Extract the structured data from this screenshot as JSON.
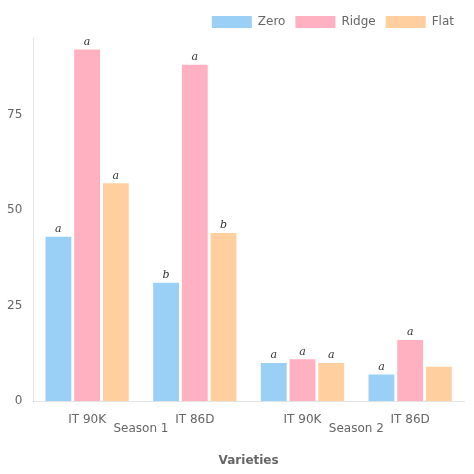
{
  "chart_data": {
    "type": "bar",
    "xlabel": "Varieties",
    "categories": [
      "IT 90K",
      "IT 86D",
      "IT 90K",
      "IT 86D"
    ],
    "series": [
      {
        "name": "Zero",
        "values": [
          43,
          31,
          10,
          7
        ],
        "annotations": [
          "a",
          "b",
          "a",
          "a"
        ]
      },
      {
        "name": "Ridge",
        "values": [
          92,
          88,
          11,
          16
        ],
        "annotations": [
          "a",
          "a",
          "a",
          "a"
        ]
      },
      {
        "name": "Flat",
        "values": [
          57,
          44,
          10,
          9
        ],
        "annotations": [
          "a",
          "b",
          "a",
          null
        ]
      }
    ],
    "annotations": [
      "Season 1",
      "Season 2"
    ],
    "ylim": [
      0,
      95
    ],
    "yticks": [
      0,
      25,
      50,
      75
    ],
    "grid": false,
    "legend": "upper right"
  }
}
